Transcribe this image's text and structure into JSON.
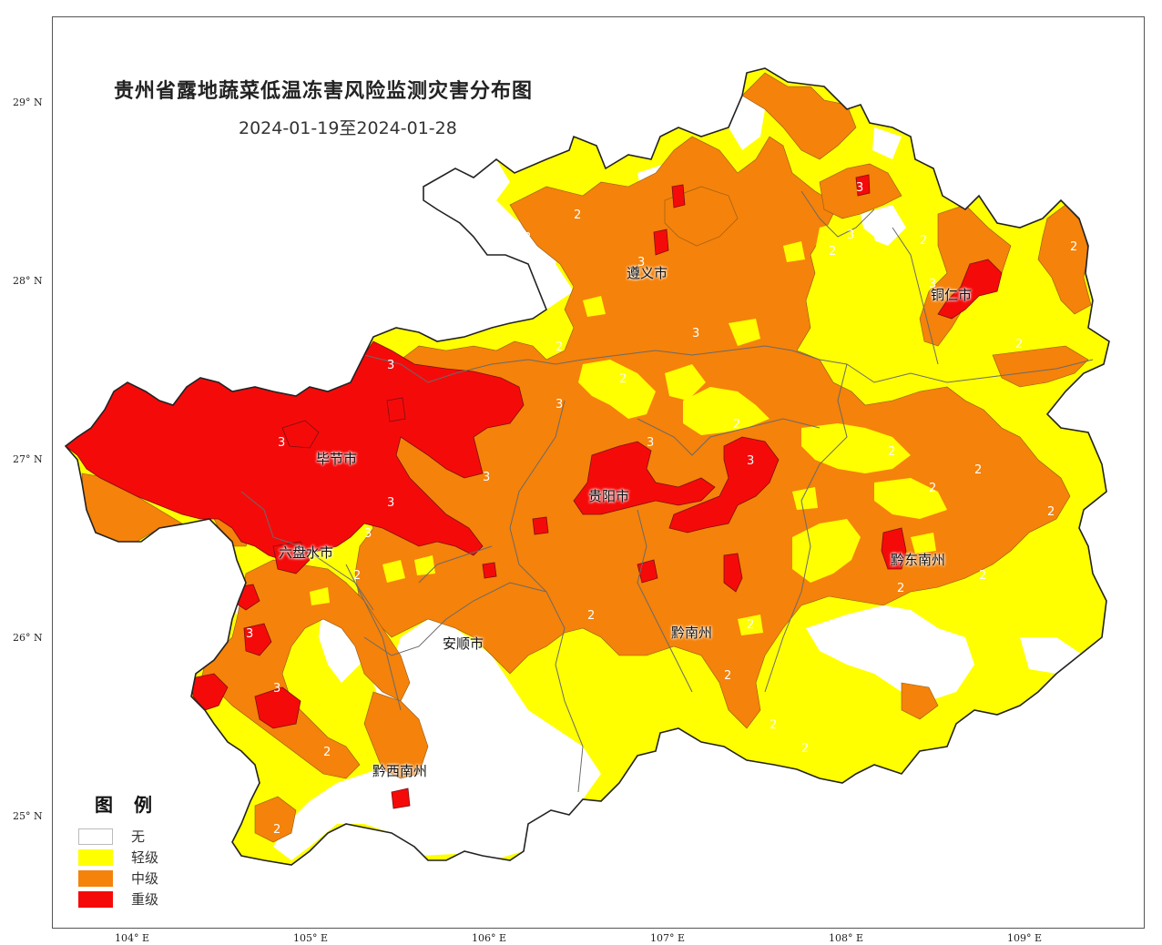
{
  "title": "贵州省露地蔬菜低温冻害风险监测灾害分布图",
  "date_range": "2024-01-19至2024-01-28",
  "lat_labels": [
    "29° N",
    "28° N",
    "27° N",
    "26° N",
    "25° N"
  ],
  "lon_labels": [
    "104° E",
    "105° E",
    "106° E",
    "107° E",
    "108° E",
    "109° E"
  ],
  "cities": {
    "zunyi": "遵义市",
    "tongren": "铜仁市",
    "bijie": "毕节市",
    "guiyang": "贵阳市",
    "liupanshui": "六盘水市",
    "qiandongnan": "黔东南州",
    "anshun": "安顺市",
    "qiannan": "黔南州",
    "qianxinan": "黔西南州"
  },
  "legend": {
    "title": "图 例",
    "items": [
      {
        "label": "无",
        "color": "#ffffff"
      },
      {
        "label": "轻级",
        "color": "#ffff00"
      },
      {
        "label": "中级",
        "color": "#f5820a"
      },
      {
        "label": "重级",
        "color": "#f50a0a"
      }
    ]
  },
  "colors": {
    "none": "#ffffff",
    "light": "#ffff00",
    "medium": "#f5820a",
    "severe": "#f50a0a",
    "boundary": "#222222",
    "inner_boundary": "#6a6a6a"
  }
}
